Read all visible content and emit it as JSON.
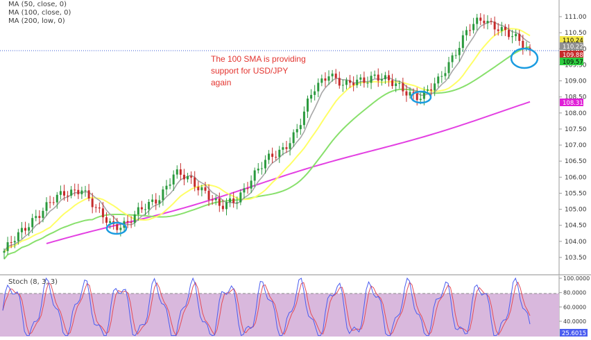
{
  "indicators": {
    "ma1": "MA (50, close, 0)",
    "ma2": "MA (100, close, 0)",
    "ma3": "MA (200, low, 0)",
    "stoch": "Stoch (8, 3, 3)"
  },
  "annotation": "The 100 SMA is providing\nsupport for USD/JPY\nagain",
  "colors": {
    "candle_up": "#2b9a3e",
    "candle_down": "#c62b2b",
    "ma50": "#a7a7a7",
    "ma100": "#f9f267",
    "ma100_shown": "#ffff66",
    "ma200": "#88e06c",
    "ma_low": "#e340e2",
    "stoch_k": "#4a5cf0",
    "stoch_d": "#e34b57",
    "stoch_band": "#d9b8dd",
    "highlight_circle": "#1a9be0"
  },
  "chart_data": [
    {
      "type": "candlestick",
      "title": "",
      "y_axis_ticks": [
        "111.00",
        "110.50",
        "110.00",
        "109.50",
        "109.00",
        "108.50",
        "108.00",
        "107.50",
        "107.00",
        "106.50",
        "106.00",
        "105.50",
        "105.00",
        "104.50",
        "104.00",
        "103.50"
      ],
      "ylim": [
        103.3,
        111.2
      ],
      "price_labels": [
        {
          "value": "110.24",
          "color": "#f4e84a",
          "text_color": "#000000"
        },
        {
          "value": "110.22",
          "color": "#8f8f8f",
          "text_color": "#ffffff"
        },
        {
          "value": "109.88",
          "color": "#c62b2b",
          "text_color": "#ffffff"
        },
        {
          "value": "109.57",
          "color": "#2ecc40",
          "text_color": "#000000"
        },
        {
          "value": "108.31",
          "color": "#e01fd7",
          "text_color": "#ffffff"
        }
      ],
      "current_price": 109.88,
      "series_closes_approx": [
        103.7,
        104.2,
        104.8,
        105.2,
        105.5,
        105.7,
        104.9,
        104.5,
        104.6,
        105.0,
        105.4,
        106.1,
        105.9,
        105.6,
        105.0,
        105.3,
        106.0,
        106.5,
        106.9,
        107.5,
        108.7,
        109.3,
        108.8,
        109.0,
        109.2,
        108.9,
        108.7,
        108.5,
        108.9,
        109.8,
        110.6,
        110.9,
        110.7,
        110.3,
        109.9
      ],
      "ma_values_end": {
        "MA50": 110.22,
        "MA100": 110.24,
        "MA200": 109.57,
        "MA200_low": 108.31
      }
    },
    {
      "type": "line",
      "title": "Stoch (8, 3, 3)",
      "y_axis_ticks": [
        "100.0000",
        "80.0000",
        "60.0000",
        "40.0000"
      ],
      "ylim": [
        20,
        100
      ],
      "band": [
        20,
        80
      ],
      "last_value": "25.6015",
      "last_value_color": "#4a5cf0"
    }
  ]
}
